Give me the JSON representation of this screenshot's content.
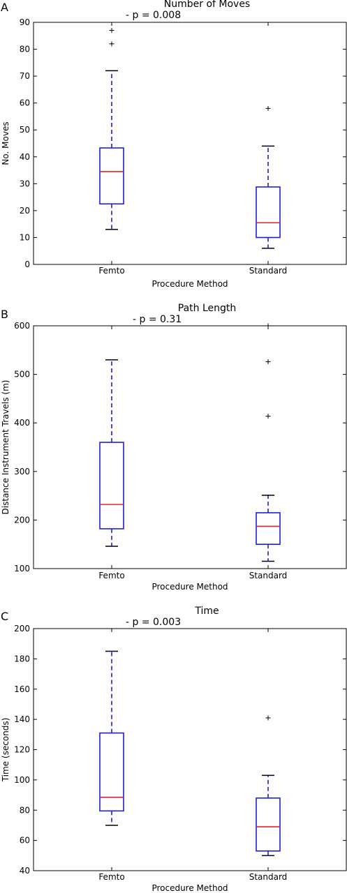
{
  "chart_data": [
    {
      "type": "box",
      "panel_letter": "A",
      "title": "Number of Moves",
      "annotation": "- p = 0.008",
      "xlabel": "Procedure Method",
      "ylabel": "No. Moves",
      "ylim": [
        0,
        90
      ],
      "yticks": [
        0,
        10,
        20,
        30,
        40,
        50,
        60,
        70,
        80,
        90
      ],
      "categories": [
        "Femto",
        "Standard"
      ],
      "boxes": [
        {
          "name": "Femto",
          "whisker_low": 13,
          "q1": 22.5,
          "median": 34.5,
          "q3": 43.3,
          "whisker_high": 72,
          "outliers": [
            82,
            87
          ]
        },
        {
          "name": "Standard",
          "whisker_low": 6,
          "q1": 10,
          "median": 15.5,
          "q3": 28.8,
          "whisker_high": 44,
          "outliers": [
            58
          ]
        }
      ]
    },
    {
      "type": "box",
      "panel_letter": "B",
      "title": "Path Length",
      "annotation": "- p = 0.31",
      "xlabel": "Procedure Method",
      "ylabel": "Distance Instrument Travels (m)",
      "ylim": [
        100,
        600
      ],
      "yticks": [
        100,
        200,
        300,
        400,
        500,
        600
      ],
      "categories": [
        "Femto",
        "Standard"
      ],
      "boxes": [
        {
          "name": "Femto",
          "whisker_low": 146,
          "q1": 182,
          "median": 232,
          "q3": 360,
          "whisker_high": 530,
          "outliers": []
        },
        {
          "name": "Standard",
          "whisker_low": 115,
          "q1": 150,
          "median": 187,
          "q3": 215,
          "whisker_high": 251,
          "outliers": [
            414,
            526,
            600
          ]
        }
      ]
    },
    {
      "type": "box",
      "panel_letter": "C",
      "title": "Time",
      "annotation": "- p = 0.003",
      "xlabel": "Procedure Method",
      "ylabel": "Time (seconds)",
      "ylim": [
        40,
        200
      ],
      "yticks": [
        40,
        60,
        80,
        100,
        120,
        140,
        160,
        180,
        200
      ],
      "categories": [
        "Femto",
        "Standard"
      ],
      "boxes": [
        {
          "name": "Femto",
          "whisker_low": 70,
          "q1": 79.5,
          "median": 88.5,
          "q3": 131,
          "whisker_high": 185,
          "outliers": []
        },
        {
          "name": "Standard",
          "whisker_low": 50,
          "q1": 53,
          "median": 69,
          "q3": 88,
          "whisker_high": 103,
          "outliers": [
            141
          ]
        }
      ]
    }
  ],
  "colors": {
    "box": "#1f1fd6",
    "median": "#e8202a",
    "whisker": "#1f1fd6",
    "cap": "#000000",
    "outlier": "#000000",
    "axes": "#000000"
  }
}
